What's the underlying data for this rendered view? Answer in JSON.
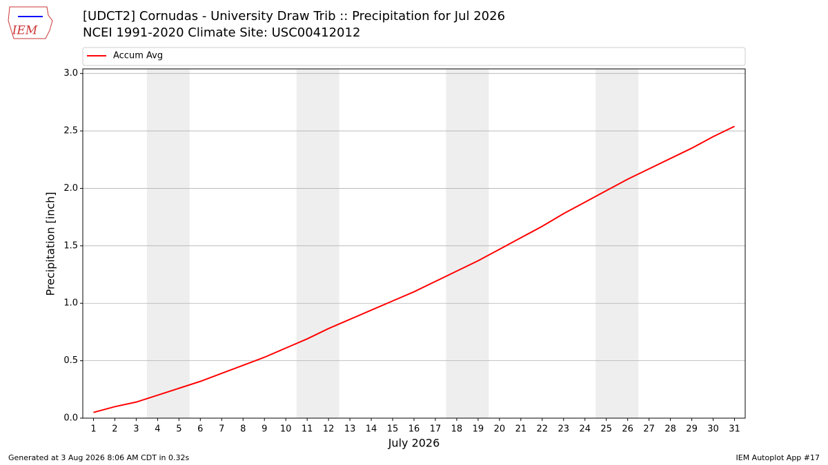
{
  "chart_data": {
    "type": "line",
    "title": "[UDCT2] Cornudas - University Draw Trib :: Precipitation for Jul 2026",
    "subtitle": "NCEI 1991-2020 Climate Site: USC00412012",
    "logo": "IEM",
    "x_label": "July 2026",
    "y_label": "Precipitation [inch]",
    "footer_left": "Generated at 3 Aug 2026 8:06 AM CDT in 0.32s",
    "footer_right": "IEM Autoplot App #17",
    "x": [
      1,
      2,
      3,
      4,
      5,
      6,
      7,
      8,
      9,
      10,
      11,
      12,
      13,
      14,
      15,
      16,
      17,
      18,
      19,
      20,
      21,
      22,
      23,
      24,
      25,
      26,
      27,
      28,
      29,
      30,
      31
    ],
    "series": [
      {
        "name": "Accum Avg",
        "color": "#ff0000",
        "values": [
          0.05,
          0.1,
          0.14,
          0.2,
          0.26,
          0.32,
          0.39,
          0.46,
          0.53,
          0.61,
          0.69,
          0.78,
          0.86,
          0.94,
          1.02,
          1.1,
          1.19,
          1.28,
          1.37,
          1.47,
          1.57,
          1.67,
          1.78,
          1.88,
          1.98,
          2.08,
          2.17,
          2.26,
          2.35,
          2.45,
          2.54
        ]
      }
    ],
    "weekend_days": [
      [
        4,
        5
      ],
      [
        11,
        12
      ],
      [
        18,
        19
      ],
      [
        25,
        26
      ]
    ],
    "weekend_color": "#eeeeee",
    "xlim": [
      0.5,
      31.5
    ],
    "xticks": [
      1,
      2,
      3,
      4,
      5,
      6,
      7,
      8,
      9,
      10,
      11,
      12,
      13,
      14,
      15,
      16,
      17,
      18,
      19,
      20,
      21,
      22,
      23,
      24,
      25,
      26,
      27,
      28,
      29,
      30,
      31
    ],
    "ylim": [
      0,
      3.04
    ],
    "yticks": [
      {
        "value": 0,
        "label": "0.0"
      },
      {
        "value": 0.5,
        "label": "0.5"
      },
      {
        "value": 1,
        "label": "1.0"
      },
      {
        "value": 1.5,
        "label": "1.5"
      },
      {
        "value": 2,
        "label": "2.0"
      },
      {
        "value": 2.5,
        "label": "2.5"
      },
      {
        "value": 3,
        "label": "3.0"
      }
    ],
    "grid": true,
    "legend": "top"
  }
}
